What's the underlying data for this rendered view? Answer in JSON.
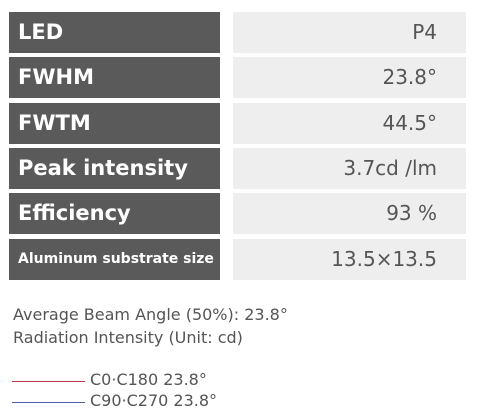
{
  "table": {
    "rows": [
      [
        "LED",
        "P4"
      ],
      [
        "FWHM",
        "23.8°"
      ],
      [
        "FWTM",
        "44.5°"
      ],
      [
        "Peak intensity",
        "3.7cd /lm"
      ],
      [
        "Efficiency",
        "93 %"
      ],
      [
        "Aluminum substrate size",
        "13.5×13.5"
      ]
    ]
  },
  "notes": [
    "Average Beam Angle (50%): 23.8°",
    "Radiation Intensity (Unit: cd)"
  ],
  "legend": [
    "C0·C180 23.8°",
    "C90·C270 23.8°"
  ]
}
